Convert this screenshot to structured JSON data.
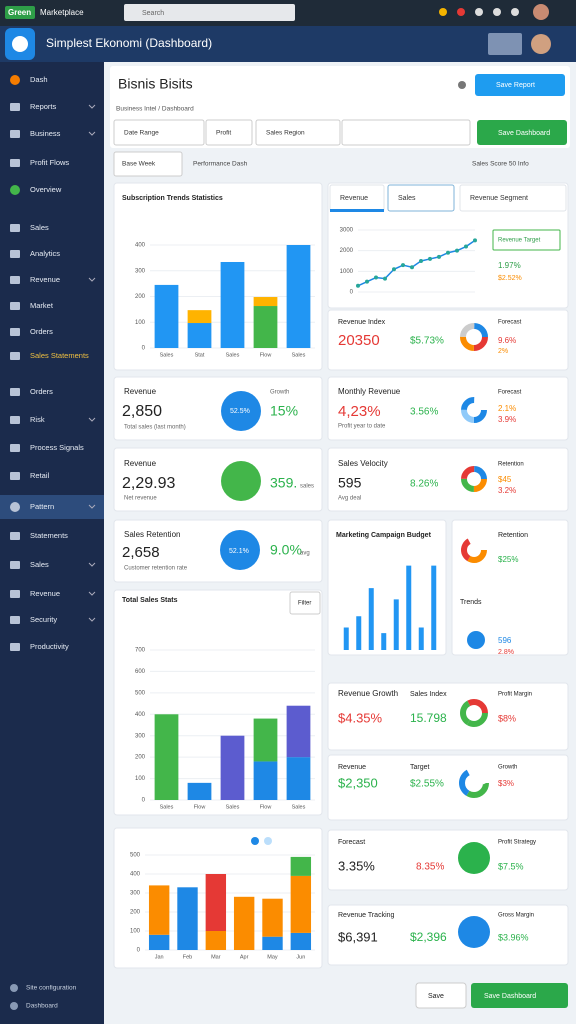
{
  "topbar": {
    "badge": "Green",
    "app": "Marketplace",
    "search": "Search"
  },
  "header": {
    "title": "Simplest Ekonomi (Dashboard)"
  },
  "sidebar": {
    "items": [
      "Dash",
      "Reports",
      "Business",
      "Profit Flows",
      "Overview",
      "Sales",
      "Analytics",
      "Revenue",
      "Market",
      "Orders",
      "Sales Statements",
      "Orders",
      "Risk",
      "Process Signals",
      "Retail",
      "Pattern",
      "Statements",
      "Sales",
      "Revenue",
      "Security",
      "Productivity"
    ],
    "footer": [
      "Site configuration",
      "Dashboard"
    ]
  },
  "page": {
    "title": "Bisnis Bisits",
    "save": "Save Report",
    "breadcrumb": "Business Intel / Dashboard",
    "filters": [
      "Date Range",
      "Profit",
      "Sales Region"
    ],
    "save_dashboard": "Save Dashboard",
    "period": "Base Week",
    "subtitle": "Performance Dash",
    "score": "Sales Score 50 Info",
    "filter": "Filter",
    "footer_cancel": "Save",
    "footer_save": "Save Dashboard"
  },
  "tabs": [
    "Revenue",
    "Sales",
    "Revenue Segment"
  ],
  "target": {
    "label": "Revenue Target",
    "value": "1.97%",
    "change": "$2.52%"
  },
  "cards": [
    {
      "texts": [
        "Revenue",
        "2,850",
        "Total sales (last month)",
        "52.5%",
        "15%",
        "Growth"
      ]
    },
    {
      "texts": [
        "Monthly Revenue",
        "4,23%",
        "Profit year to date",
        "3.56%",
        "Forecast",
        "2.1%",
        "3.9%"
      ]
    },
    {
      "texts": [
        "Revenue",
        "2,29.93",
        "Net revenue",
        "359.",
        "sales"
      ]
    },
    {
      "texts": [
        "Sales Velocity",
        "595",
        "Avg deal",
        "8.26%",
        "Retention",
        "$45",
        "3.2%"
      ]
    },
    {
      "texts": [
        "Sales Retention",
        "2,658",
        "Customer retention rate",
        "52.1%",
        "9.0%",
        "avg"
      ]
    },
    {
      "texts": [
        "Retention",
        "$25%",
        "Trends",
        "596",
        "2.8%"
      ]
    },
    {
      "texts": [
        "Revenue Growth",
        "Sales Index",
        "$4.35%",
        "15.798",
        "Profit Margin",
        "$8%"
      ]
    },
    {
      "texts": [
        "Revenue",
        "Target",
        "$2,350",
        "$2.55%",
        "Growth",
        "$3%"
      ]
    },
    {
      "texts": [
        "Forecast",
        "3.35%",
        "8.35%",
        "Profit Strategy",
        "$7.5%"
      ]
    },
    {
      "texts": [
        "Revenue Tracking",
        "$6,391",
        "$2,396",
        "Gross Margin",
        "$3.96%"
      ]
    },
    {
      "texts": [
        "Revenue Index",
        "20350",
        "$5.73%",
        "Forecast",
        "9.6%",
        "2%"
      ]
    }
  ],
  "charts": [
    {
      "type": "bar",
      "stacked": true,
      "title": "Subscription Trends Statistics",
      "categories": [
        "Sales",
        "Stat",
        "Sales",
        "Flow",
        "Sales"
      ],
      "ylim": [
        0,
        400
      ],
      "yticks": [
        0,
        100,
        200,
        300,
        400
      ],
      "series": [
        {
          "color": "#2196f3",
          "values": [
            245,
            97,
            334,
            0,
            400
          ]
        },
        {
          "color": "#43b64a",
          "values": [
            0,
            0,
            0,
            163,
            0
          ]
        },
        {
          "color": "#ffb300",
          "values": [
            0,
            50,
            0,
            35,
            0
          ]
        }
      ]
    },
    {
      "type": "line",
      "ylim": [
        0,
        3000
      ],
      "yticks": [
        0,
        1000,
        2000,
        3000
      ],
      "series": [
        {
          "color": "#1e88e5",
          "values": [
            300,
            500,
            700,
            650,
            1100,
            1300,
            1200,
            1500,
            1600,
            1700,
            1900,
            2000,
            2200,
            2500
          ]
        }
      ]
    },
    {
      "type": "bar",
      "stacked": false,
      "title": "Marketing Campaign Budget",
      "ylim": [
        0,
        160
      ],
      "series": [
        {
          "color": "#2196f3",
          "values": [
            40,
            60,
            110,
            30,
            90,
            150,
            40,
            150
          ]
        }
      ]
    },
    {
      "type": "bar",
      "stacked": true,
      "title": "Total Sales Stats",
      "categories": [
        "Sales",
        "Flow",
        "Sales",
        "Flow",
        "Sales"
      ],
      "ylim": [
        0,
        700
      ],
      "yticks": [
        0,
        100,
        200,
        300,
        400,
        500,
        600,
        700
      ],
      "series": [
        {
          "color": "#1e88e5",
          "values": [
            0,
            80,
            0,
            180,
            200
          ]
        },
        {
          "color": "#43b64a",
          "values": [
            400,
            0,
            0,
            200,
            0
          ]
        },
        {
          "color": "#5c5ccf",
          "values": [
            0,
            0,
            300,
            0,
            240
          ]
        }
      ]
    },
    {
      "type": "bar",
      "stacked": true,
      "categories": [
        "Jan",
        "Feb",
        "Mar",
        "Apr",
        "May",
        "Jun"
      ],
      "ylim": [
        0,
        500
      ],
      "yticks": [
        0,
        100,
        200,
        300,
        400,
        500
      ],
      "series": [
        {
          "color": "#1e88e5",
          "values": [
            80,
            330,
            0,
            0,
            70,
            90
          ]
        },
        {
          "color": "#fb8c00",
          "values": [
            260,
            0,
            100,
            280,
            200,
            300
          ]
        },
        {
          "color": "#e53935",
          "values": [
            0,
            0,
            300,
            0,
            0,
            0
          ]
        },
        {
          "color": "#43b64a",
          "values": [
            0,
            0,
            0,
            0,
            0,
            100
          ]
        }
      ]
    }
  ]
}
